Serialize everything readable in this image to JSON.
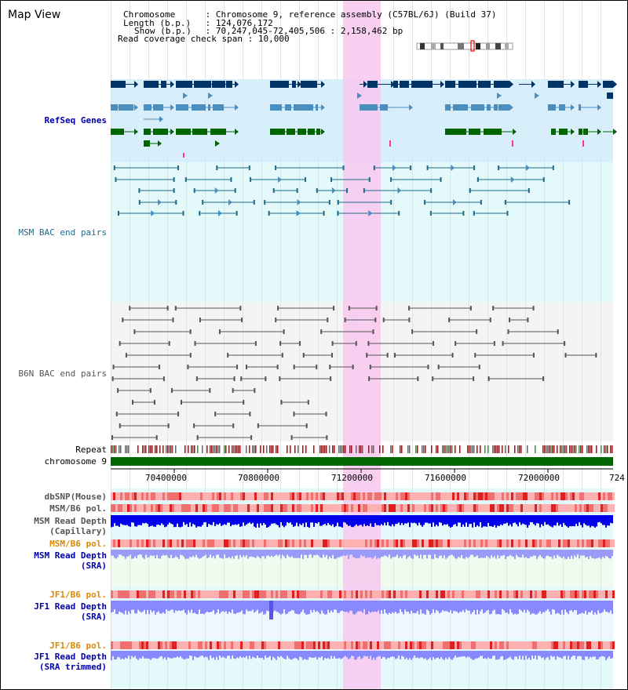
{
  "view": {
    "title": "Map View",
    "chromosome_label": "Chromosome",
    "chromosome_value": "Chromosome 9, reference assembly (C57BL/6J) (Build 37)",
    "length_label": "Length (b.p.)",
    "length_value": "124,076,172",
    "show_label": "Show (b.p.)",
    "show_value": "70,247,045-72,405,506 : 2,158,462 bp",
    "coverage_label": "Read coverage check span",
    "coverage_value": "10,000"
  },
  "tracks": {
    "refseq": "RefSeq Genes",
    "msm_bac": "MSM BAC end pairs",
    "b6n_bac": "B6N BAC end pairs",
    "repeat": "Repeat",
    "chromosome": "chromosome 9",
    "dbsnp": "dbSNP(Mouse)",
    "msm_b6_pol": "MSM/B6 pol.",
    "msm_read_depth_1": "MSM Read Depth",
    "msm_read_depth_1b": "(Capillary)",
    "msm_b6_pol_2": "MSM/B6 pol.",
    "msm_read_depth_2": "MSM Read Depth",
    "msm_read_depth_2b": "(SRA)",
    "jf1_b6_pol": "JF1/B6 pol.",
    "jf1_read_depth": "JF1 Read Depth",
    "jf1_read_depth_b": "(SRA)",
    "jf1_b6_pol_2": "JF1/B6 pol.",
    "jf1_read_depth_2": "JF1 Read Depth",
    "jf1_read_depth_2b": "(SRA trimmed)"
  },
  "axis": {
    "ticks": [
      "70400000",
      "70800000",
      "71200000",
      "71600000",
      "72000000",
      "724"
    ]
  },
  "colors": {
    "highlight": "#f8c8f0",
    "refseq_bg": "#d8eefa",
    "bac_bg": "#e4fafa",
    "chromosome": "#006600",
    "dark_blue": "#003366",
    "mid_blue": "#4a8fbf",
    "msm_line": "#1e6b8a",
    "b6n_line": "#555555",
    "depth_blue": "#0000ee",
    "depth_light": "#8888ff",
    "pol_label_orange": "#dd8800",
    "label_blue": "#0000aa"
  }
}
